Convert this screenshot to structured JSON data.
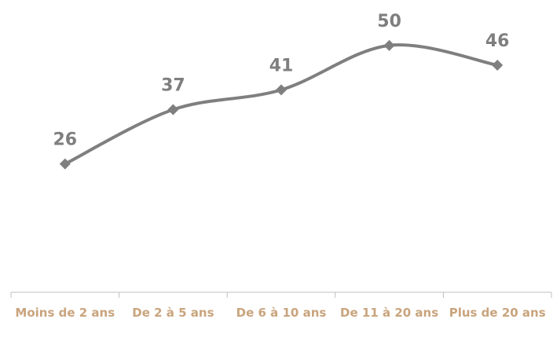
{
  "chart_data": {
    "type": "line",
    "categories": [
      "Moins de 2 ans",
      "De 2 à 5 ans",
      "De 6 à 10 ans",
      "De 11 à 20 ans",
      "Plus de 20 ans"
    ],
    "values": [
      26,
      37,
      41,
      50,
      46
    ],
    "color": "#7f7f7f",
    "ylim": [
      0,
      60
    ],
    "smooth": true
  }
}
